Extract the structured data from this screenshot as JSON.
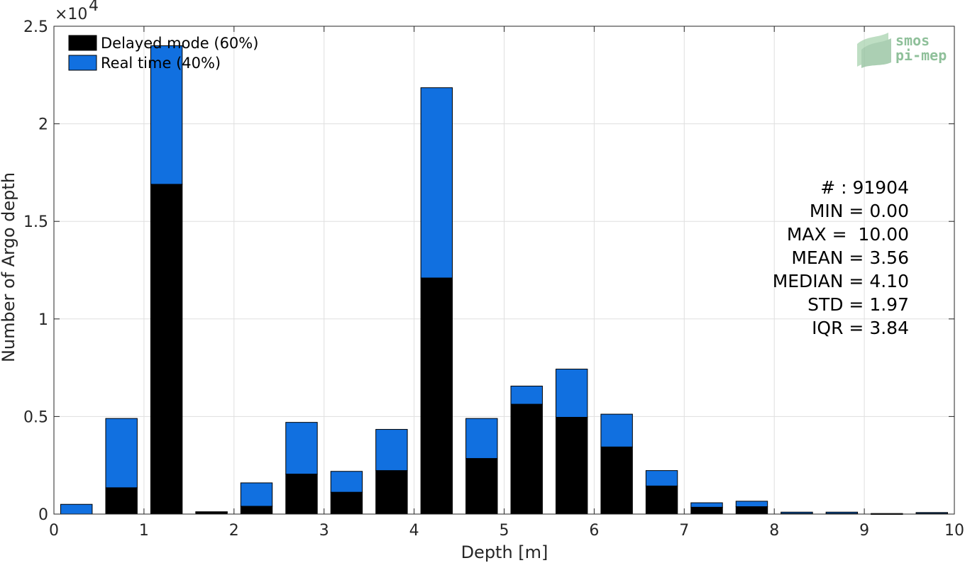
{
  "chart_data": {
    "type": "bar",
    "stacked": true,
    "xlabel": "Depth [m]",
    "ylabel": "Number of Argo depth",
    "y_exponent_label": "×10",
    "y_exponent_power": "4",
    "xlim": [
      0,
      10
    ],
    "ylim": [
      0,
      25000
    ],
    "x_ticks": [
      "0",
      "1",
      "2",
      "3",
      "4",
      "5",
      "6",
      "7",
      "8",
      "9",
      "10"
    ],
    "y_ticks": [
      "0",
      "0.5",
      "1",
      "1.5",
      "2",
      "2.5"
    ],
    "y_tick_values": [
      0,
      5000,
      10000,
      15000,
      20000,
      25000
    ],
    "grid": true,
    "legend_position": "top-left",
    "bin_centers": [
      0.25,
      0.75,
      1.25,
      1.75,
      2.25,
      2.75,
      3.25,
      3.75,
      4.25,
      4.75,
      5.25,
      5.75,
      6.25,
      6.75,
      7.25,
      7.75,
      8.25,
      8.75,
      9.25,
      9.75
    ],
    "bar_width": 0.35,
    "series": [
      {
        "name": "Delayed mode (60%)",
        "color": "#000000",
        "values": [
          0,
          1350,
          16900,
          100,
          400,
          2050,
          1120,
          2230,
          12100,
          2850,
          5630,
          4960,
          3440,
          1440,
          350,
          380,
          30,
          30,
          10,
          30
        ]
      },
      {
        "name": "Real time (40%)",
        "color": "#1170e0",
        "values": [
          500,
          3550,
          7100,
          20,
          1200,
          2650,
          1070,
          2110,
          9750,
          2050,
          930,
          2470,
          1680,
          790,
          230,
          280,
          70,
          70,
          20,
          50
        ]
      }
    ]
  },
  "stats": [
    "# : 91904",
    "MIN = 0.00",
    "MAX =  10.00",
    "MEAN = 3.56",
    "MEDIAN = 4.10",
    "STD = 1.97",
    "IQR = 3.84"
  ],
  "logo": {
    "line1": "smos",
    "line2": "pi-mep"
  },
  "colors": {
    "delayed": "#000000",
    "realtime": "#1170e0",
    "grid": "#dfdfdf",
    "axis": "#262626"
  }
}
